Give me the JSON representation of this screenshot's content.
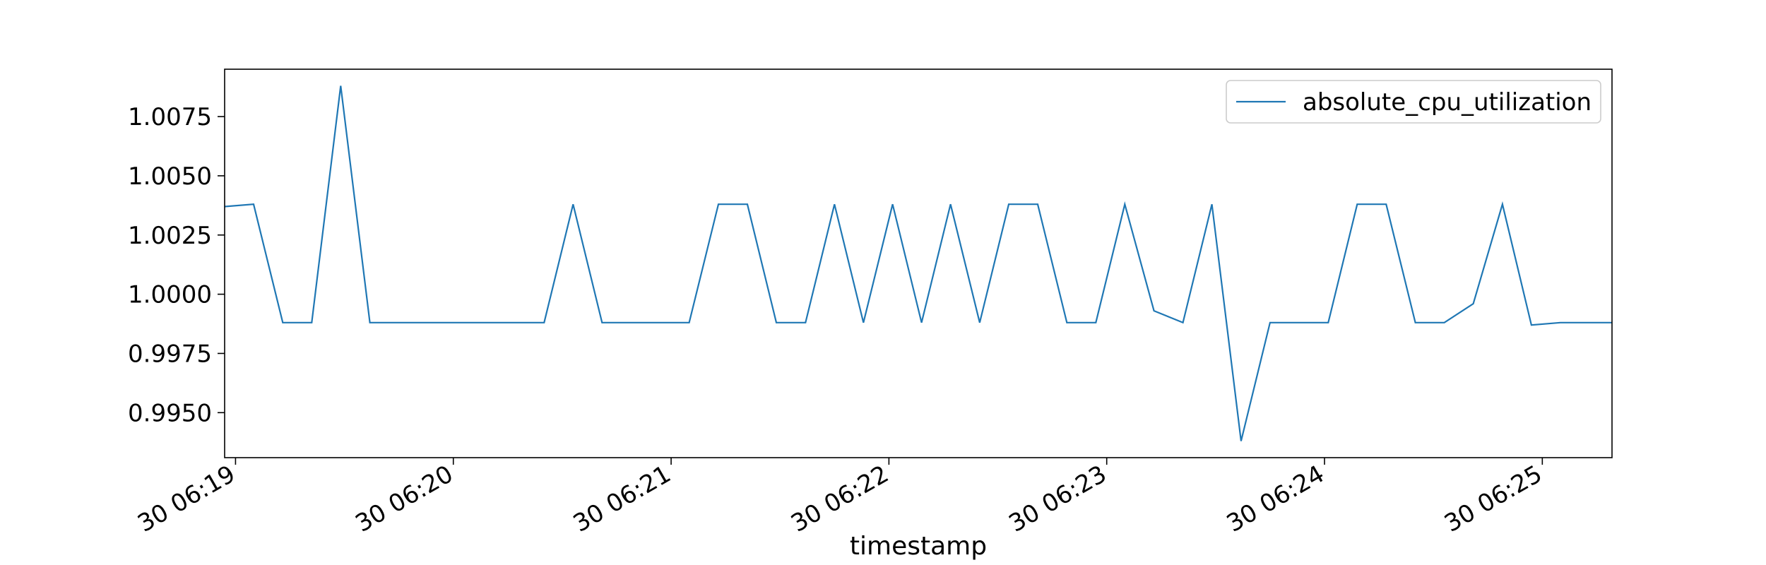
{
  "chart_data": {
    "type": "line",
    "title": "",
    "xlabel": "timestamp",
    "ylabel": "",
    "grid": false,
    "legend_position": "top-right",
    "x_unit": "minutes",
    "x_ticks": [
      {
        "value": 0,
        "label": "30 06:19"
      },
      {
        "value": 1,
        "label": "30 06:20"
      },
      {
        "value": 2,
        "label": "30 06:21"
      },
      {
        "value": 3,
        "label": "30 06:22"
      },
      {
        "value": 4,
        "label": "30 06:23"
      },
      {
        "value": 5,
        "label": "30 06:24"
      },
      {
        "value": 6,
        "label": "30 06:25"
      }
    ],
    "y_ticks": [
      {
        "value": 0.995,
        "label": "0.9950"
      },
      {
        "value": 0.9975,
        "label": "0.9975"
      },
      {
        "value": 1.0,
        "label": "1.0000"
      },
      {
        "value": 1.0025,
        "label": "1.0025"
      },
      {
        "value": 1.005,
        "label": "1.0050"
      },
      {
        "value": 1.0075,
        "label": "1.0075"
      }
    ],
    "xlim": [
      -0.05,
      6.32
    ],
    "ylim": [
      0.9931,
      1.0095
    ],
    "series": [
      {
        "name": "absolute_cpu_utilization",
        "color": "#1f77b4",
        "x": [
          -0.05,
          0.083,
          0.217,
          0.35,
          0.483,
          0.617,
          0.75,
          0.883,
          1.017,
          1.15,
          1.283,
          1.417,
          1.55,
          1.683,
          1.817,
          1.95,
          2.083,
          2.217,
          2.35,
          2.483,
          2.617,
          2.75,
          2.883,
          3.017,
          3.15,
          3.283,
          3.417,
          3.55,
          3.683,
          3.817,
          3.95,
          4.083,
          4.217,
          4.35,
          4.483,
          4.617,
          4.75,
          4.883,
          5.017,
          5.15,
          5.283,
          5.417,
          5.55,
          5.683,
          5.817,
          5.95,
          6.083,
          6.217,
          6.32
        ],
        "y": [
          1.0037,
          1.0038,
          0.9988,
          0.9988,
          1.0088,
          0.9988,
          0.9988,
          0.9988,
          0.9988,
          0.9988,
          0.9988,
          0.9988,
          1.0038,
          0.9988,
          0.9988,
          0.9988,
          0.9988,
          1.0038,
          1.0038,
          0.9988,
          0.9988,
          1.0038,
          0.9988,
          1.0038,
          0.9988,
          1.0038,
          0.9988,
          1.0038,
          1.0038,
          0.9988,
          0.9988,
          1.0038,
          0.9993,
          0.9988,
          1.0038,
          0.9938,
          0.9988,
          0.9988,
          0.9988,
          1.0038,
          1.0038,
          0.9988,
          0.9988,
          0.9996,
          1.0038,
          0.9987,
          0.9988,
          0.9988,
          0.9988
        ]
      }
    ]
  }
}
